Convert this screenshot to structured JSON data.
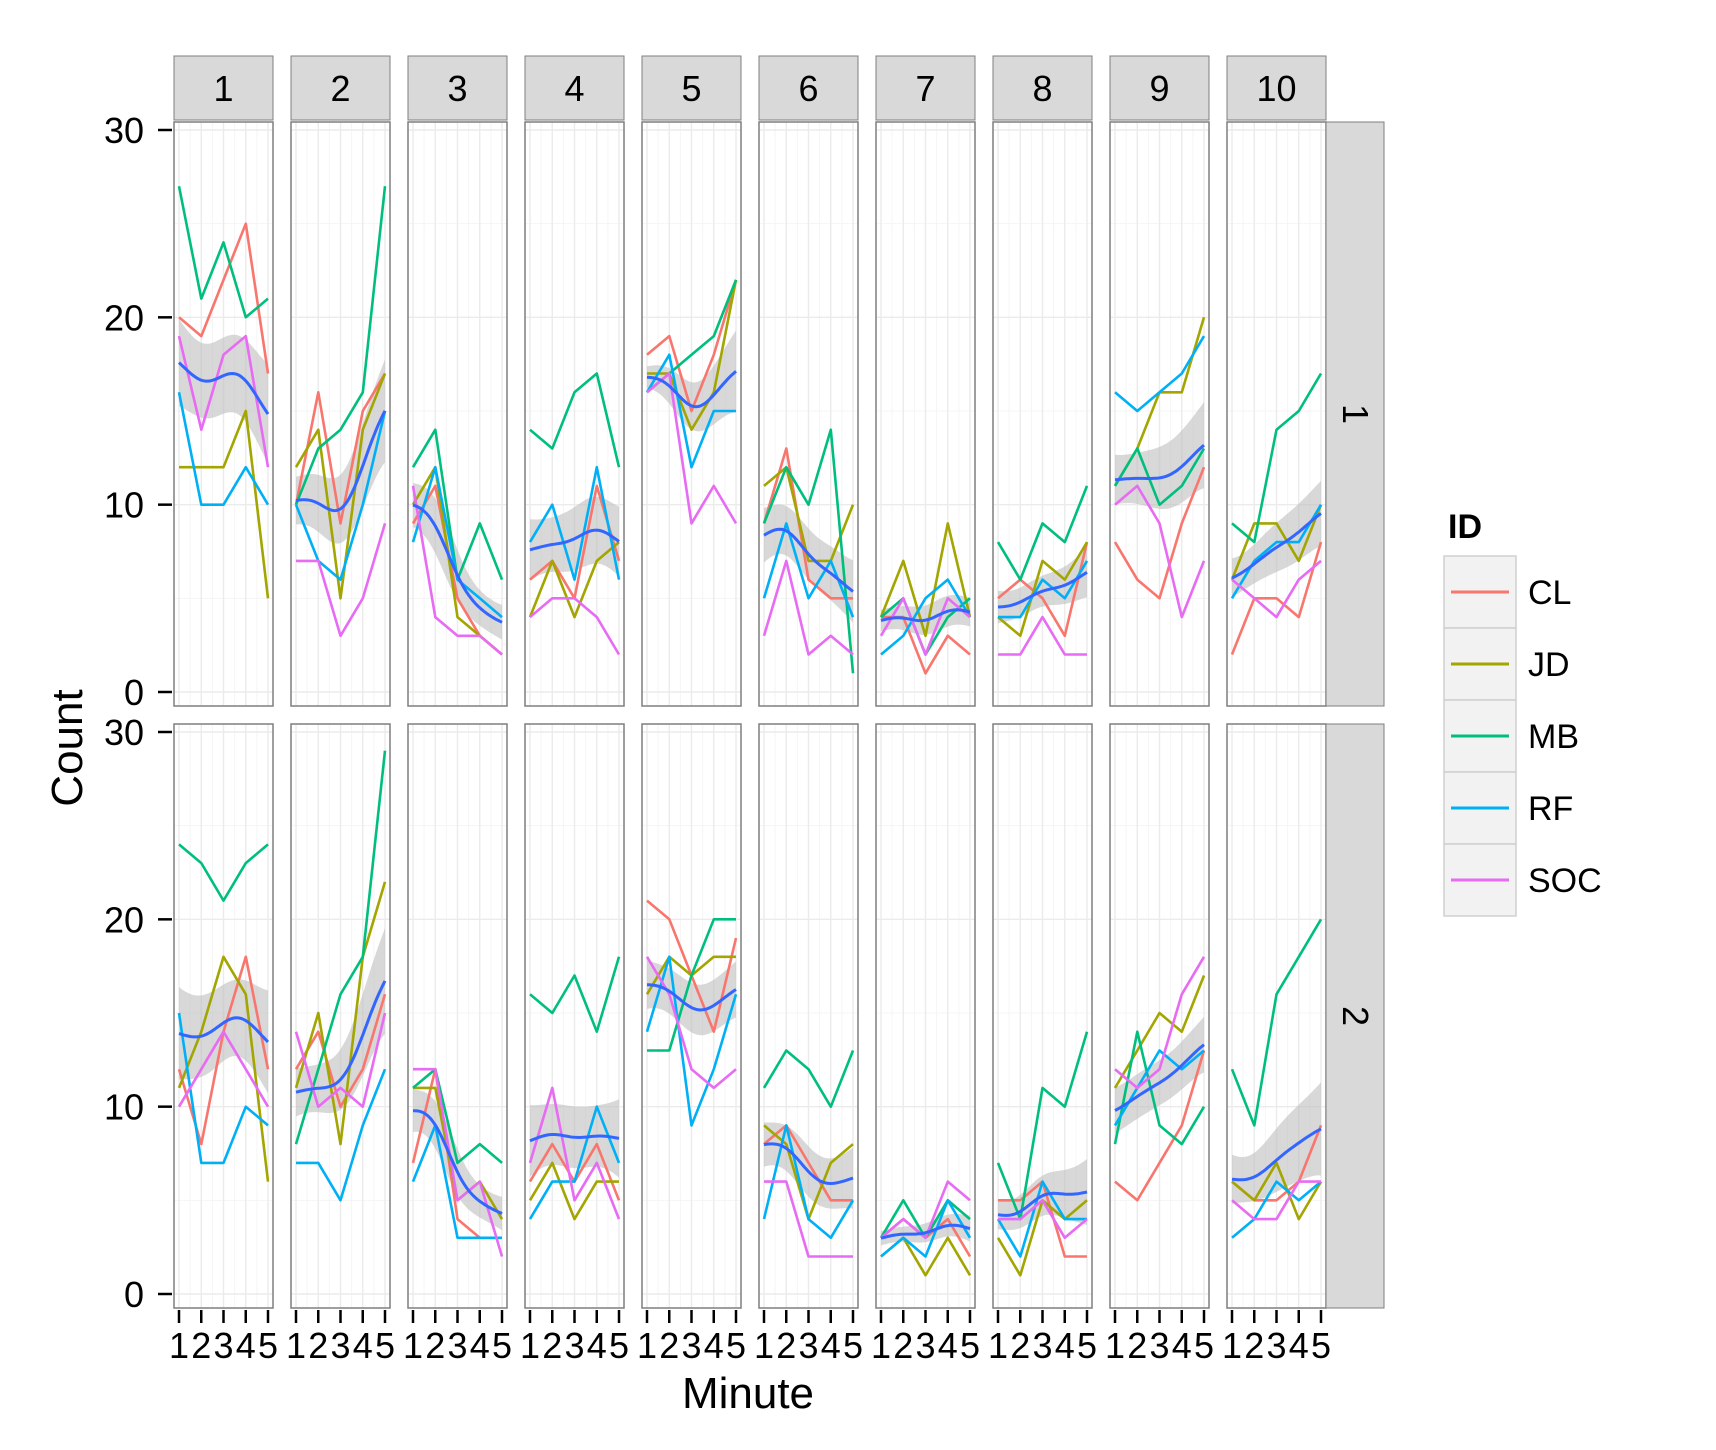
{
  "colors": {
    "CL": "#F8766D",
    "JD": "#A3A500",
    "MB": "#00BF7D",
    "RF": "#00B0F6",
    "SOC": "#E76BF3",
    "smooth": "#3366FF",
    "ribbon": "#BEBEBE",
    "panel_bg": "#FFFFFF",
    "strip_bg": "#D9D9D9",
    "grid_major": "#EBEBEB",
    "grid_minor": "#F5F5F5",
    "panel_border": "#7F7F7F"
  },
  "chart_data": {
    "type": "line",
    "xlabel": "Minute",
    "ylabel": "Count",
    "x": [
      1,
      2,
      3,
      4,
      5
    ],
    "x_tick_labels": [
      "1",
      "2",
      "3",
      "4",
      "5"
    ],
    "ylim": [
      0,
      30
    ],
    "y_ticks": [
      0,
      10,
      20,
      30
    ],
    "grid": true,
    "col_facets": [
      "1",
      "2",
      "3",
      "4",
      "5",
      "6",
      "7",
      "8",
      "9",
      "10"
    ],
    "row_facets": [
      "1",
      "2"
    ],
    "legend": {
      "title": "ID",
      "position": "right",
      "entries": [
        "CL",
        "JD",
        "MB",
        "RF",
        "SOC"
      ]
    },
    "smooth": {
      "method": "loess",
      "color_key": "smooth",
      "ribbon": true
    },
    "panels": [
      {
        "row": "1",
        "col": "1",
        "series": {
          "CL": [
            20,
            19,
            22,
            25,
            17
          ],
          "JD": [
            12,
            12,
            12,
            15,
            5
          ],
          "MB": [
            27,
            21,
            24,
            20,
            21
          ],
          "RF": [
            16,
            10,
            10,
            12,
            10
          ],
          "SOC": [
            19,
            14,
            18,
            19,
            12
          ]
        }
      },
      {
        "row": "1",
        "col": "2",
        "series": {
          "CL": [
            10,
            16,
            9,
            15,
            17
          ],
          "JD": [
            12,
            14,
            5,
            14,
            17
          ],
          "MB": [
            10,
            13,
            14,
            16,
            27
          ],
          "RF": [
            10,
            7,
            6,
            10,
            15
          ],
          "SOC": [
            7,
            7,
            3,
            5,
            9
          ]
        }
      },
      {
        "row": "1",
        "col": "3",
        "series": {
          "CL": [
            9,
            11,
            5,
            3,
            2
          ],
          "JD": [
            10,
            12,
            4,
            3,
            2
          ],
          "MB": [
            12,
            14,
            6,
            9,
            6
          ],
          "RF": [
            8,
            12,
            6,
            5,
            4
          ],
          "SOC": [
            11,
            4,
            3,
            3,
            2
          ]
        }
      },
      {
        "row": "1",
        "col": "4",
        "series": {
          "CL": [
            6,
            7,
            5,
            11,
            7
          ],
          "JD": [
            4,
            7,
            4,
            7,
            8
          ],
          "MB": [
            14,
            13,
            16,
            17,
            12
          ],
          "RF": [
            8,
            10,
            6,
            12,
            6
          ],
          "SOC": [
            4,
            5,
            5,
            4,
            2
          ]
        }
      },
      {
        "row": "1",
        "col": "5",
        "series": {
          "CL": [
            18,
            19,
            15,
            18,
            22
          ],
          "JD": [
            17,
            17,
            14,
            16,
            22
          ],
          "MB": [
            16,
            17,
            18,
            19,
            22
          ],
          "RF": [
            16,
            18,
            12,
            15,
            15
          ],
          "SOC": [
            16,
            17,
            9,
            11,
            9
          ]
        }
      },
      {
        "row": "1",
        "col": "6",
        "series": {
          "CL": [
            9,
            13,
            6,
            5,
            5
          ],
          "JD": [
            11,
            12,
            7,
            7,
            10
          ],
          "MB": [
            9,
            12,
            10,
            14,
            1
          ],
          "RF": [
            5,
            9,
            5,
            7,
            4
          ],
          "SOC": [
            3,
            7,
            2,
            3,
            2
          ]
        }
      },
      {
        "row": "1",
        "col": "7",
        "series": {
          "CL": [
            4,
            4,
            1,
            3,
            2
          ],
          "JD": [
            4,
            7,
            3,
            9,
            4
          ],
          "MB": [
            4,
            5,
            2,
            4,
            5
          ],
          "RF": [
            2,
            3,
            5,
            6,
            4
          ],
          "SOC": [
            3,
            5,
            2,
            5,
            4
          ]
        }
      },
      {
        "row": "1",
        "col": "8",
        "series": {
          "CL": [
            5,
            6,
            5,
            3,
            8
          ],
          "JD": [
            4,
            3,
            7,
            6,
            8
          ],
          "MB": [
            8,
            6,
            9,
            8,
            11
          ],
          "RF": [
            4,
            4,
            6,
            5,
            7
          ],
          "SOC": [
            2,
            2,
            4,
            2,
            2
          ]
        }
      },
      {
        "row": "1",
        "col": "9",
        "series": {
          "CL": [
            8,
            6,
            5,
            9,
            12
          ],
          "JD": [
            11,
            13,
            16,
            16,
            20
          ],
          "MB": [
            11,
            13,
            10,
            11,
            13
          ],
          "RF": [
            16,
            15,
            16,
            17,
            19
          ],
          "SOC": [
            10,
            11,
            9,
            4,
            7
          ]
        }
      },
      {
        "row": "1",
        "col": "10",
        "series": {
          "CL": [
            2,
            5,
            5,
            4,
            8
          ],
          "JD": [
            6,
            9,
            9,
            7,
            10
          ],
          "MB": [
            9,
            8,
            14,
            15,
            17
          ],
          "RF": [
            5,
            7,
            8,
            8,
            10
          ],
          "SOC": [
            6,
            5,
            4,
            6,
            7
          ]
        }
      },
      {
        "row": "2",
        "col": "1",
        "series": {
          "CL": [
            12,
            8,
            14,
            18,
            12
          ],
          "JD": [
            11,
            14,
            18,
            16,
            6
          ],
          "MB": [
            24,
            23,
            21,
            23,
            24
          ],
          "RF": [
            15,
            7,
            7,
            10,
            9
          ],
          "SOC": [
            10,
            12,
            14,
            12,
            10
          ]
        }
      },
      {
        "row": "2",
        "col": "2",
        "series": {
          "CL": [
            12,
            14,
            10,
            12,
            16
          ],
          "JD": [
            11,
            15,
            8,
            18,
            22
          ],
          "MB": [
            8,
            12,
            16,
            18,
            29
          ],
          "RF": [
            7,
            7,
            5,
            9,
            12
          ],
          "SOC": [
            14,
            10,
            11,
            10,
            15
          ]
        }
      },
      {
        "row": "2",
        "col": "3",
        "series": {
          "CL": [
            7,
            12,
            4,
            3,
            3
          ],
          "JD": [
            11,
            11,
            5,
            6,
            4
          ],
          "MB": [
            11,
            12,
            7,
            8,
            7
          ],
          "RF": [
            6,
            9,
            3,
            3,
            3
          ],
          "SOC": [
            12,
            12,
            5,
            6,
            2
          ]
        }
      },
      {
        "row": "2",
        "col": "4",
        "series": {
          "CL": [
            6,
            8,
            6,
            8,
            5
          ],
          "JD": [
            5,
            7,
            4,
            6,
            6
          ],
          "MB": [
            16,
            15,
            17,
            14,
            18
          ],
          "RF": [
            4,
            6,
            6,
            10,
            7
          ],
          "SOC": [
            7,
            11,
            5,
            7,
            4
          ]
        }
      },
      {
        "row": "2",
        "col": "5",
        "series": {
          "CL": [
            21,
            20,
            17,
            14,
            19
          ],
          "JD": [
            16,
            18,
            17,
            18,
            18
          ],
          "MB": [
            13,
            13,
            17,
            20,
            20
          ],
          "RF": [
            14,
            18,
            9,
            12,
            16
          ],
          "SOC": [
            18,
            16,
            12,
            11,
            12
          ]
        }
      },
      {
        "row": "2",
        "col": "6",
        "series": {
          "CL": [
            8,
            9,
            7,
            5,
            5
          ],
          "JD": [
            9,
            8,
            4,
            7,
            8
          ],
          "MB": [
            11,
            13,
            12,
            10,
            13
          ],
          "RF": [
            4,
            9,
            4,
            3,
            5
          ],
          "SOC": [
            6,
            6,
            2,
            2,
            2
          ]
        }
      },
      {
        "row": "2",
        "col": "7",
        "series": {
          "CL": [
            3,
            4,
            3,
            4,
            2
          ],
          "JD": [
            2,
            3,
            1,
            3,
            1
          ],
          "MB": [
            3,
            5,
            3,
            5,
            4
          ],
          "RF": [
            2,
            3,
            2,
            5,
            3
          ],
          "SOC": [
            3,
            4,
            3,
            6,
            5
          ]
        }
      },
      {
        "row": "2",
        "col": "8",
        "series": {
          "CL": [
            5,
            5,
            6,
            2,
            2
          ],
          "JD": [
            3,
            1,
            5,
            4,
            5
          ],
          "MB": [
            7,
            4,
            11,
            10,
            14
          ],
          "RF": [
            4,
            2,
            6,
            4,
            4
          ],
          "SOC": [
            4,
            4,
            5,
            3,
            4
          ]
        }
      },
      {
        "row": "2",
        "col": "9",
        "series": {
          "CL": [
            6,
            5,
            7,
            9,
            13
          ],
          "JD": [
            11,
            13,
            15,
            14,
            17
          ],
          "MB": [
            8,
            14,
            9,
            8,
            10
          ],
          "RF": [
            9,
            11,
            13,
            12,
            13
          ],
          "SOC": [
            12,
            11,
            12,
            16,
            18
          ]
        }
      },
      {
        "row": "2",
        "col": "10",
        "series": {
          "CL": [
            6,
            5,
            5,
            6,
            9
          ],
          "JD": [
            6,
            5,
            7,
            4,
            6
          ],
          "MB": [
            12,
            9,
            16,
            18,
            20
          ],
          "RF": [
            3,
            4,
            6,
            5,
            6
          ],
          "SOC": [
            5,
            4,
            4,
            6,
            6
          ]
        }
      }
    ]
  }
}
